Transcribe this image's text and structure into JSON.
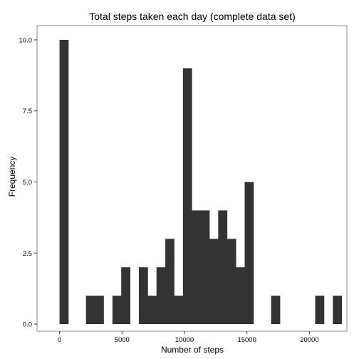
{
  "chart_data": {
    "type": "bar",
    "title": "Total steps taken each day (complete data set)",
    "xlabel": "Number of steps",
    "ylabel": "Frequency",
    "xlim": [
      -1800,
      23000
    ],
    "ylim": [
      -0.25,
      10.5
    ],
    "xticks": [
      0,
      5000,
      10000,
      15000,
      20000
    ],
    "xtick_labels": [
      "0",
      "5000",
      "10000",
      "15000",
      "20000"
    ],
    "yticks": [
      0,
      2.5,
      5,
      7.5,
      10
    ],
    "ytick_labels": [
      "0.0",
      "2.5",
      "5.0",
      "7.5",
      "10.0"
    ],
    "bin_width": 705.6,
    "bin_start": 0,
    "values": [
      10,
      0,
      0,
      1,
      1,
      0,
      1,
      2,
      0,
      2,
      1,
      2,
      3,
      1,
      9,
      4,
      4,
      3,
      4,
      3,
      2,
      5,
      0,
      0,
      1,
      0,
      0,
      0,
      0,
      1,
      0,
      1
    ],
    "bar_color": "#333333",
    "background": "#ffffff",
    "border_color": "#888888",
    "grid": false
  }
}
